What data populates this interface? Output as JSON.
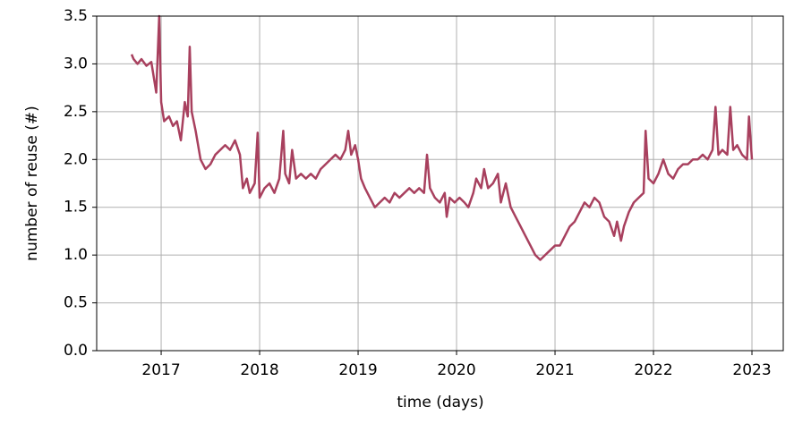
{
  "chart_data": {
    "type": "line",
    "xlabel": "time (days)",
    "ylabel": "number of reuse (#)",
    "xlim": [
      2016.345,
      2023.318
    ],
    "xticks": [
      2017,
      2018,
      2019,
      2020,
      2021,
      2022,
      2023
    ],
    "ylim": [
      0,
      3.5
    ],
    "yticks": [
      {
        "value": 0,
        "label": "0.0"
      },
      0.5,
      {
        "value": 1,
        "label": "1.0"
      },
      1.5,
      {
        "value": 2,
        "label": "2.0"
      },
      2.5,
      {
        "value": 3,
        "label": "3.0"
      },
      3.5
    ],
    "grid": true,
    "series": [
      {
        "color": "#a8405e",
        "x": [
          2016.7,
          2016.72,
          2016.76,
          2016.8,
          2016.85,
          2016.9,
          2016.95,
          2016.98,
          2017.0,
          2017.03,
          2017.08,
          2017.12,
          2017.16,
          2017.2,
          2017.24,
          2017.27,
          2017.29,
          2017.31,
          2017.35,
          2017.4,
          2017.45,
          2017.5,
          2017.55,
          2017.6,
          2017.65,
          2017.7,
          2017.75,
          2017.8,
          2017.83,
          2017.87,
          2017.9,
          2017.95,
          2017.98,
          2018.0,
          2018.05,
          2018.1,
          2018.15,
          2018.2,
          2018.24,
          2018.26,
          2018.3,
          2018.33,
          2018.37,
          2018.42,
          2018.47,
          2018.52,
          2018.57,
          2018.62,
          2018.67,
          2018.72,
          2018.77,
          2018.82,
          2018.87,
          2018.9,
          2018.93,
          2018.97,
          2019.0,
          2019.03,
          2019.07,
          2019.12,
          2019.17,
          2019.22,
          2019.27,
          2019.32,
          2019.37,
          2019.42,
          2019.47,
          2019.52,
          2019.57,
          2019.62,
          2019.67,
          2019.7,
          2019.73,
          2019.78,
          2019.83,
          2019.88,
          2019.9,
          2019.93,
          2019.98,
          2020.03,
          2020.08,
          2020.12,
          2020.17,
          2020.2,
          2020.25,
          2020.28,
          2020.32,
          2020.37,
          2020.42,
          2020.45,
          2020.5,
          2020.55,
          2020.6,
          2020.65,
          2020.7,
          2020.75,
          2020.8,
          2020.85,
          2020.9,
          2020.95,
          2021.0,
          2021.05,
          2021.1,
          2021.15,
          2021.2,
          2021.25,
          2021.3,
          2021.35,
          2021.4,
          2021.45,
          2021.5,
          2021.55,
          2021.6,
          2021.63,
          2021.67,
          2021.7,
          2021.75,
          2021.8,
          2021.85,
          2021.9,
          2021.92,
          2021.95,
          2022.0,
          2022.05,
          2022.1,
          2022.15,
          2022.2,
          2022.25,
          2022.3,
          2022.35,
          2022.4,
          2022.45,
          2022.5,
          2022.55,
          2022.6,
          2022.63,
          2022.66,
          2022.7,
          2022.75,
          2022.78,
          2022.81,
          2022.85,
          2022.9,
          2022.95,
          2022.97,
          2023.0
        ],
        "values": [
          3.1,
          3.05,
          3.0,
          3.05,
          2.98,
          3.02,
          2.7,
          3.5,
          2.6,
          2.4,
          2.45,
          2.35,
          2.4,
          2.2,
          2.6,
          2.45,
          3.18,
          2.5,
          2.3,
          2.0,
          1.9,
          1.95,
          2.05,
          2.1,
          2.15,
          2.1,
          2.2,
          2.05,
          1.7,
          1.8,
          1.65,
          1.75,
          2.28,
          1.6,
          1.7,
          1.75,
          1.65,
          1.8,
          2.3,
          1.85,
          1.75,
          2.1,
          1.8,
          1.85,
          1.8,
          1.85,
          1.8,
          1.9,
          1.95,
          2.0,
          2.05,
          2.0,
          2.1,
          2.3,
          2.05,
          2.15,
          2.0,
          1.8,
          1.7,
          1.6,
          1.5,
          1.55,
          1.6,
          1.55,
          1.65,
          1.6,
          1.65,
          1.7,
          1.65,
          1.7,
          1.65,
          2.05,
          1.7,
          1.6,
          1.55,
          1.65,
          1.4,
          1.6,
          1.55,
          1.6,
          1.55,
          1.5,
          1.65,
          1.8,
          1.7,
          1.9,
          1.7,
          1.75,
          1.85,
          1.55,
          1.75,
          1.5,
          1.4,
          1.3,
          1.2,
          1.1,
          1.0,
          0.95,
          1.0,
          1.05,
          1.1,
          1.1,
          1.2,
          1.3,
          1.35,
          1.45,
          1.55,
          1.5,
          1.6,
          1.55,
          1.4,
          1.35,
          1.2,
          1.35,
          1.15,
          1.3,
          1.45,
          1.55,
          1.6,
          1.65,
          2.3,
          1.8,
          1.75,
          1.85,
          2.0,
          1.85,
          1.8,
          1.9,
          1.95,
          1.95,
          2.0,
          2.0,
          2.05,
          2.0,
          2.1,
          2.55,
          2.05,
          2.1,
          2.05,
          2.55,
          2.1,
          2.15,
          2.05,
          2.0,
          2.45,
          2.0
        ]
      }
    ]
  }
}
